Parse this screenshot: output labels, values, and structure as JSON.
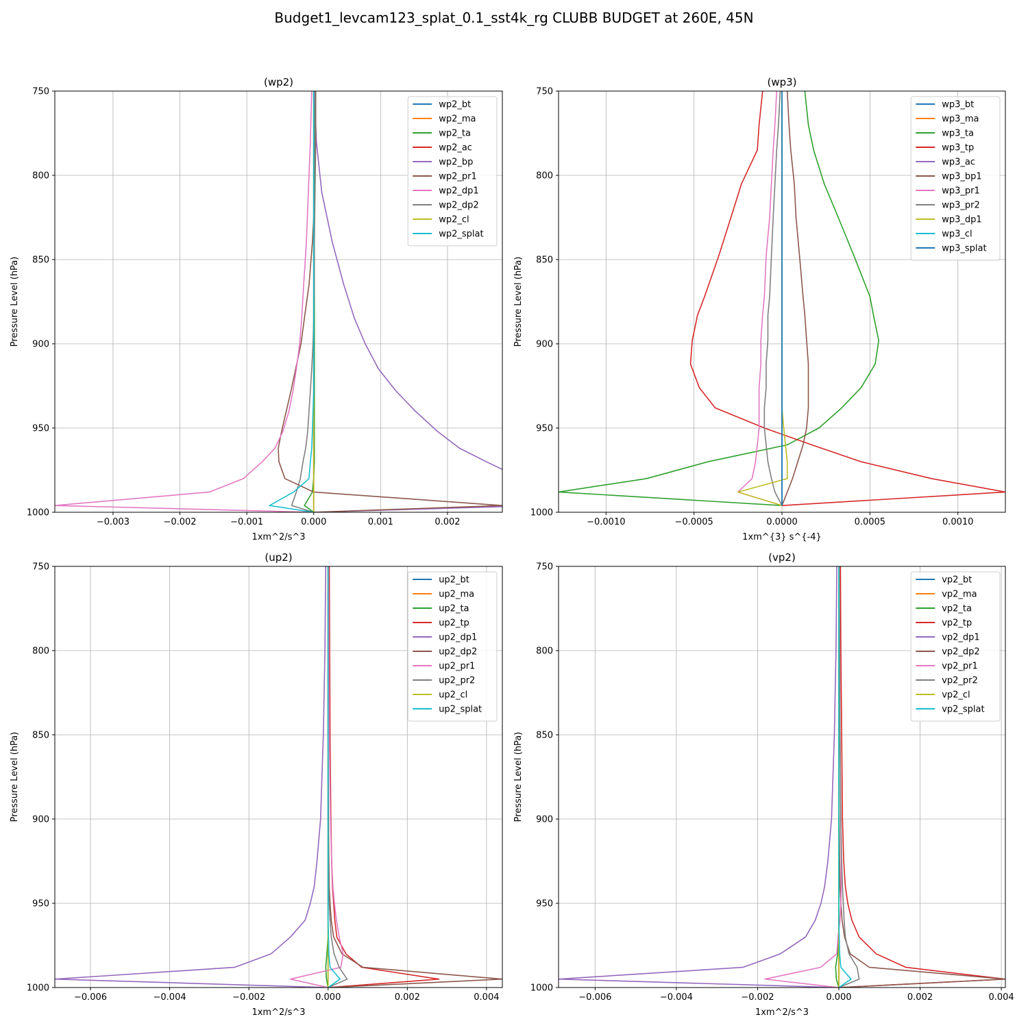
{
  "figure_title": "Budget1_levcam123_splat_0.1_sst4k_rg CLUBB BUDGET at 260E, 45N",
  "colors": [
    "#1f77b4",
    "#ff7f0e",
    "#2ca02c",
    "#d62728",
    "#9467bd",
    "#8c564b",
    "#e377c2",
    "#7f7f7f",
    "#bcbd22",
    "#17becf"
  ],
  "chart_data": [
    {
      "type": "line",
      "title": "(wp2)",
      "xlabel": "1xm^2/s^3",
      "ylabel": "Pressure Level (hPa)",
      "xlim": [
        -0.00387,
        0.00282
      ],
      "ylim": [
        1000,
        750
      ],
      "xticks": [
        -0.003,
        -0.002,
        -0.001,
        0,
        0.001,
        0.002
      ],
      "xtick_labels": [
        "−0.003",
        "−0.002",
        "−0.001",
        "0.000",
        "0.001",
        "0.002"
      ],
      "yticks": [
        750,
        800,
        850,
        900,
        950,
        1000
      ],
      "ytick_labels": [
        "750",
        "800",
        "850",
        "900",
        "950",
        "1000"
      ],
      "grid": true,
      "legend_position": "top-right",
      "y": [
        750,
        780,
        810,
        840,
        865,
        885,
        900,
        915,
        928,
        940,
        952,
        962,
        970,
        980,
        988,
        996,
        1000
      ],
      "series": [
        {
          "name": "wp2_bt",
          "x": [
            0,
            0,
            0,
            0,
            0,
            0,
            0,
            0,
            0,
            0,
            0,
            0,
            0,
            0,
            0,
            0,
            0
          ]
        },
        {
          "name": "wp2_ma",
          "x": [
            0,
            0,
            0,
            0,
            0,
            0,
            0,
            0,
            0,
            0,
            0,
            0,
            0,
            0,
            0,
            0,
            0
          ]
        },
        {
          "name": "wp2_ta",
          "x": [
            1e-05,
            1e-05,
            1e-05,
            1e-05,
            1e-05,
            1e-05,
            1e-05,
            1e-05,
            1e-05,
            1e-05,
            1e-05,
            1e-05,
            1e-05,
            0,
            -2e-05,
            -0.00014,
            0
          ]
        },
        {
          "name": "wp2_ac",
          "x": [
            0,
            0,
            0,
            0,
            0,
            0,
            0,
            0,
            0,
            0,
            0,
            0,
            0,
            0,
            0,
            0,
            0
          ]
        },
        {
          "name": "wp2_bp",
          "x": [
            1e-05,
            4e-05,
            0.00012,
            0.00028,
            0.00045,
            0.00061,
            0.00077,
            0.00097,
            0.00123,
            0.00152,
            0.00185,
            0.00218,
            0.00258,
            0.00311,
            0.00334,
            0.00337,
            0.0
          ]
        },
        {
          "name": "wp2_pr1",
          "x": [
            3e-05,
            3e-05,
            2e-05,
            -2e-05,
            -7e-05,
            -0.00014,
            -0.00019,
            -0.00027,
            -0.00034,
            -0.00041,
            -0.00048,
            -0.00053,
            -0.00052,
            -0.00043,
            0.0,
            0.00282,
            0.0
          ]
        },
        {
          "name": "wp2_dp1",
          "x": [
            -3e-05,
            -5e-05,
            -8e-05,
            -0.00011,
            -0.00015,
            -0.00018,
            -0.00021,
            -0.00026,
            -0.00031,
            -0.00037,
            -0.00046,
            -0.00058,
            -0.00077,
            -0.00105,
            -0.00156,
            -0.00387,
            0.0
          ]
        },
        {
          "name": "wp2_dp2",
          "x": [
            2e-05,
            2e-05,
            2e-05,
            1e-05,
            1e-05,
            0.0,
            -1e-05,
            -3e-05,
            -5e-05,
            -7e-05,
            -9e-05,
            -0.00012,
            -0.00016,
            -0.0002,
            -0.00026,
            -0.00033,
            0.0
          ]
        },
        {
          "name": "wp2_cl",
          "x": [
            0,
            0,
            0,
            0,
            0,
            0,
            0,
            0,
            0,
            0,
            0,
            0,
            0,
            0,
            0,
            0,
            0
          ]
        },
        {
          "name": "wp2_splat",
          "x": [
            0.0,
            0.0,
            0.0,
            0.0,
            0.0,
            0.0,
            0.0,
            0.0,
            0.0,
            -1e-05,
            -2e-05,
            -3e-05,
            -5e-05,
            -7e-05,
            -0.0003,
            -0.00066,
            0.0
          ]
        }
      ]
    },
    {
      "type": "line",
      "title": "(wp3)",
      "xlabel": "1xm^{3} s^{-4}",
      "ylabel": "Pressure Level (hPa)",
      "xlim": [
        -0.00127,
        0.00127
      ],
      "ylim": [
        1000,
        750
      ],
      "xticks": [
        -0.001,
        -0.0005,
        0,
        0.0005,
        0.001
      ],
      "xtick_labels": [
        "−0.0010",
        "−0.0005",
        "0.0000",
        "0.0005",
        "0.0010"
      ],
      "yticks": [
        750,
        800,
        850,
        900,
        950,
        1000
      ],
      "ytick_labels": [
        "750",
        "800",
        "850",
        "900",
        "950",
        "1000"
      ],
      "grid": true,
      "legend_position": "top-right",
      "y": [
        750,
        770,
        785,
        805,
        825,
        848,
        872,
        883,
        898,
        912,
        926,
        938,
        950,
        960,
        970,
        980,
        988,
        996
      ],
      "series": [
        {
          "name": "wp3_bt",
          "x": [
            0,
            0,
            0,
            0,
            0,
            0,
            0,
            0,
            0,
            0,
            0,
            0,
            0,
            0,
            0,
            0,
            0,
            0
          ]
        },
        {
          "name": "wp3_ma",
          "x": [
            0,
            0,
            0,
            0,
            0,
            0,
            0,
            0,
            0,
            0,
            0,
            0,
            0,
            0,
            0,
            0,
            0,
            0
          ]
        },
        {
          "name": "wp3_ta",
          "x": [
            0.00013,
            0.00015,
            0.00018,
            0.00024,
            0.00032,
            0.00041,
            0.0005,
            0.00052,
            0.00055,
            0.00053,
            0.00045,
            0.00034,
            0.00021,
            3e-05,
            -0.00042,
            -0.00077,
            -0.00127,
            0.0
          ]
        },
        {
          "name": "wp3_tp",
          "x": [
            -0.00011,
            -0.00013,
            -0.00014,
            -0.00023,
            -0.00029,
            -0.00036,
            -0.00044,
            -0.00048,
            -0.00051,
            -0.00052,
            -0.00047,
            -0.00038,
            -0.0001,
            0.00017,
            0.00045,
            0.00085,
            0.00127,
            0.0
          ]
        },
        {
          "name": "wp3_ac",
          "x": [
            0,
            0,
            0,
            0,
            0,
            0,
            0,
            0,
            0,
            0,
            0,
            0,
            0,
            0,
            0,
            0,
            0,
            0
          ]
        },
        {
          "name": "wp3_bp1",
          "x": [
            3e-05,
            4e-05,
            5e-05,
            7e-05,
            8e-05,
            0.0001,
            0.00012,
            0.00013,
            0.00014,
            0.00015,
            0.00015,
            0.00015,
            0.00014,
            0.00012,
            9e-05,
            6e-05,
            3e-05,
            0.0
          ]
        },
        {
          "name": "wp3_pr1",
          "x": [
            -3e-05,
            -4e-05,
            -5e-05,
            -6e-05,
            -7e-05,
            -9e-05,
            -0.0001,
            -0.00011,
            -0.00012,
            -0.00012,
            -0.00013,
            -0.00013,
            -0.00013,
            -0.00014,
            -0.00015,
            -0.00017,
            -0.00025,
            0.0
          ]
        },
        {
          "name": "wp3_pr2",
          "x": [
            -1e-05,
            -2e-05,
            -3e-05,
            -4e-05,
            -5e-05,
            -6e-05,
            -7e-05,
            -8e-05,
            -8e-05,
            -9e-05,
            -9e-05,
            -0.0001,
            -0.0001,
            -9e-05,
            -8e-05,
            -6e-05,
            -4e-05,
            0.0
          ]
        },
        {
          "name": "wp3_dp1",
          "x": [
            0,
            0,
            0,
            0,
            0,
            0,
            0,
            0,
            0,
            0,
            0,
            0,
            1e-05,
            2e-05,
            3e-05,
            3e-05,
            -0.00025,
            0.0
          ]
        },
        {
          "name": "wp3_cl",
          "x": [
            0,
            0,
            0,
            0,
            0,
            0,
            0,
            0,
            0,
            0,
            0,
            0,
            0,
            0,
            0,
            0,
            0,
            0
          ]
        },
        {
          "name": "wp3_splat",
          "x": [
            0,
            0,
            0,
            0,
            0,
            0,
            0,
            0,
            0,
            0,
            0,
            0,
            0,
            0,
            0,
            0,
            0,
            0
          ]
        }
      ]
    },
    {
      "type": "line",
      "title": "(up2)",
      "xlabel": "1xm^2/s^3",
      "ylabel": "Pressure Level (hPa)",
      "xlim": [
        -0.0069,
        0.0044
      ],
      "ylim": [
        1000,
        750
      ],
      "xticks": [
        -0.006,
        -0.004,
        -0.002,
        0,
        0.002,
        0.004
      ],
      "xtick_labels": [
        "−0.006",
        "−0.004",
        "−0.002",
        "0.000",
        "0.002",
        "0.004"
      ],
      "yticks": [
        750,
        800,
        850,
        900,
        950,
        1000
      ],
      "ytick_labels": [
        "750",
        "800",
        "850",
        "900",
        "950",
        "1000"
      ],
      "grid": true,
      "legend_position": "top-right",
      "y": [
        750,
        800,
        850,
        900,
        925,
        940,
        950,
        960,
        970,
        980,
        988,
        995,
        1000
      ],
      "series": [
        {
          "name": "up2_bt",
          "x": [
            0,
            0,
            0,
            0,
            0,
            0,
            0,
            0,
            0,
            0,
            0,
            0,
            0
          ]
        },
        {
          "name": "up2_ma",
          "x": [
            0,
            0,
            0,
            0,
            0,
            0,
            0,
            0,
            0,
            0,
            0,
            0,
            0
          ]
        },
        {
          "name": "up2_ta",
          "x": [
            0,
            0,
            0,
            0,
            0,
            0,
            0,
            0,
            0,
            -3e-05,
            -6e-05,
            -4e-05,
            0.0
          ]
        },
        {
          "name": "up2_tp",
          "x": [
            3e-05,
            4e-05,
            5e-05,
            7e-05,
            9e-05,
            0.00011,
            0.00014,
            0.00017,
            0.00022,
            0.00045,
            0.00085,
            0.0028,
            0.0
          ]
        },
        {
          "name": "up2_dp1",
          "x": [
            -6e-05,
            -8e-05,
            -0.00012,
            -0.00019,
            -0.00028,
            -0.00035,
            -0.00045,
            -0.00058,
            -0.00095,
            -0.00144,
            -0.00236,
            -0.0069,
            0.0
          ]
        },
        {
          "name": "up2_dp2",
          "x": [
            0,
            0,
            0,
            1e-05,
            2e-05,
            3e-05,
            5e-05,
            8e-05,
            0.00014,
            0.00035,
            0.00088,
            0.0044,
            0.0
          ]
        },
        {
          "name": "up2_pr1",
          "x": [
            1e-05,
            2e-05,
            3e-05,
            6e-05,
            9e-05,
            0.00012,
            0.00016,
            0.00021,
            0.00028,
            0.00038,
            0.00032,
            -0.00095,
            0.0
          ]
        },
        {
          "name": "up2_pr2",
          "x": [
            0,
            0,
            0,
            0,
            1e-05,
            2e-05,
            3e-05,
            5e-05,
            8e-05,
            0.00015,
            0.00028,
            0.00048,
            0.0
          ]
        },
        {
          "name": "up2_cl",
          "x": [
            0,
            0,
            0,
            0,
            0,
            0,
            0,
            0,
            0,
            0,
            0,
            0,
            0
          ]
        },
        {
          "name": "up2_splat",
          "x": [
            0,
            0,
            0,
            0,
            0,
            0,
            0,
            0,
            1e-05,
            2e-05,
            5e-05,
            0.0003,
            0.0
          ]
        }
      ]
    },
    {
      "type": "line",
      "title": "(vp2)",
      "xlabel": "1xm^2/s^3",
      "ylabel": "Pressure Level (hPa)",
      "xlim": [
        -0.0069,
        0.0041
      ],
      "ylim": [
        1000,
        750
      ],
      "xticks": [
        -0.006,
        -0.004,
        -0.002,
        0,
        0.002,
        0.004
      ],
      "xtick_labels": [
        "−0.006",
        "−0.004",
        "−0.002",
        "0.000",
        "0.002",
        "0.004"
      ],
      "yticks": [
        750,
        800,
        850,
        900,
        950,
        1000
      ],
      "ytick_labels": [
        "750",
        "800",
        "850",
        "900",
        "950",
        "1000"
      ],
      "grid": true,
      "legend_position": "top-right",
      "y": [
        750,
        800,
        850,
        900,
        925,
        940,
        950,
        960,
        970,
        980,
        988,
        995,
        1000
      ],
      "series": [
        {
          "name": "vp2_bt",
          "x": [
            0,
            0,
            0,
            0,
            0,
            0,
            0,
            0,
            0,
            0,
            0,
            0,
            0
          ]
        },
        {
          "name": "vp2_ma",
          "x": [
            0,
            0,
            0,
            0,
            0,
            0,
            0,
            0,
            0,
            0,
            0,
            0,
            0
          ]
        },
        {
          "name": "vp2_ta",
          "x": [
            0,
            0,
            0,
            0,
            0,
            0,
            0,
            0,
            0,
            -3e-05,
            -8e-05,
            -6e-05,
            0.0
          ]
        },
        {
          "name": "vp2_tp",
          "x": [
            4e-05,
            5e-05,
            7e-05,
            9e-05,
            0.00012,
            0.00016,
            0.00022,
            0.00032,
            0.0005,
            0.00092,
            0.00165,
            0.0041,
            0.0
          ]
        },
        {
          "name": "vp2_dp1",
          "x": [
            -5e-05,
            -7e-05,
            -0.00011,
            -0.00018,
            -0.00027,
            -0.00035,
            -0.00044,
            -0.00058,
            -0.00082,
            -0.00144,
            -0.00236,
            -0.0069,
            0.0
          ]
        },
        {
          "name": "vp2_dp2",
          "x": [
            0,
            0,
            0,
            1e-05,
            2e-05,
            3e-05,
            5e-05,
            8e-05,
            0.00014,
            0.00028,
            0.00075,
            0.0041,
            0.0
          ]
        },
        {
          "name": "vp2_pr1",
          "x": [
            1e-05,
            2e-05,
            3e-05,
            5e-05,
            6e-05,
            6e-05,
            5e-05,
            3e-05,
            -2e-05,
            -5e-05,
            -0.00045,
            -0.00182,
            0.0
          ]
        },
        {
          "name": "vp2_pr2",
          "x": [
            1e-05,
            2e-05,
            3e-05,
            5e-05,
            7e-05,
            9e-05,
            0.00011,
            0.00013,
            0.00016,
            0.00025,
            0.00045,
            0.0005,
            0.0
          ]
        },
        {
          "name": "vp2_cl",
          "x": [
            0,
            0,
            0,
            0,
            0,
            0,
            0,
            0,
            0,
            0,
            0,
            0,
            0
          ]
        },
        {
          "name": "vp2_splat",
          "x": [
            0,
            0,
            0,
            0,
            0,
            0,
            0,
            0,
            1e-05,
            2e-05,
            5e-05,
            0.0003,
            0.0
          ]
        }
      ]
    }
  ]
}
